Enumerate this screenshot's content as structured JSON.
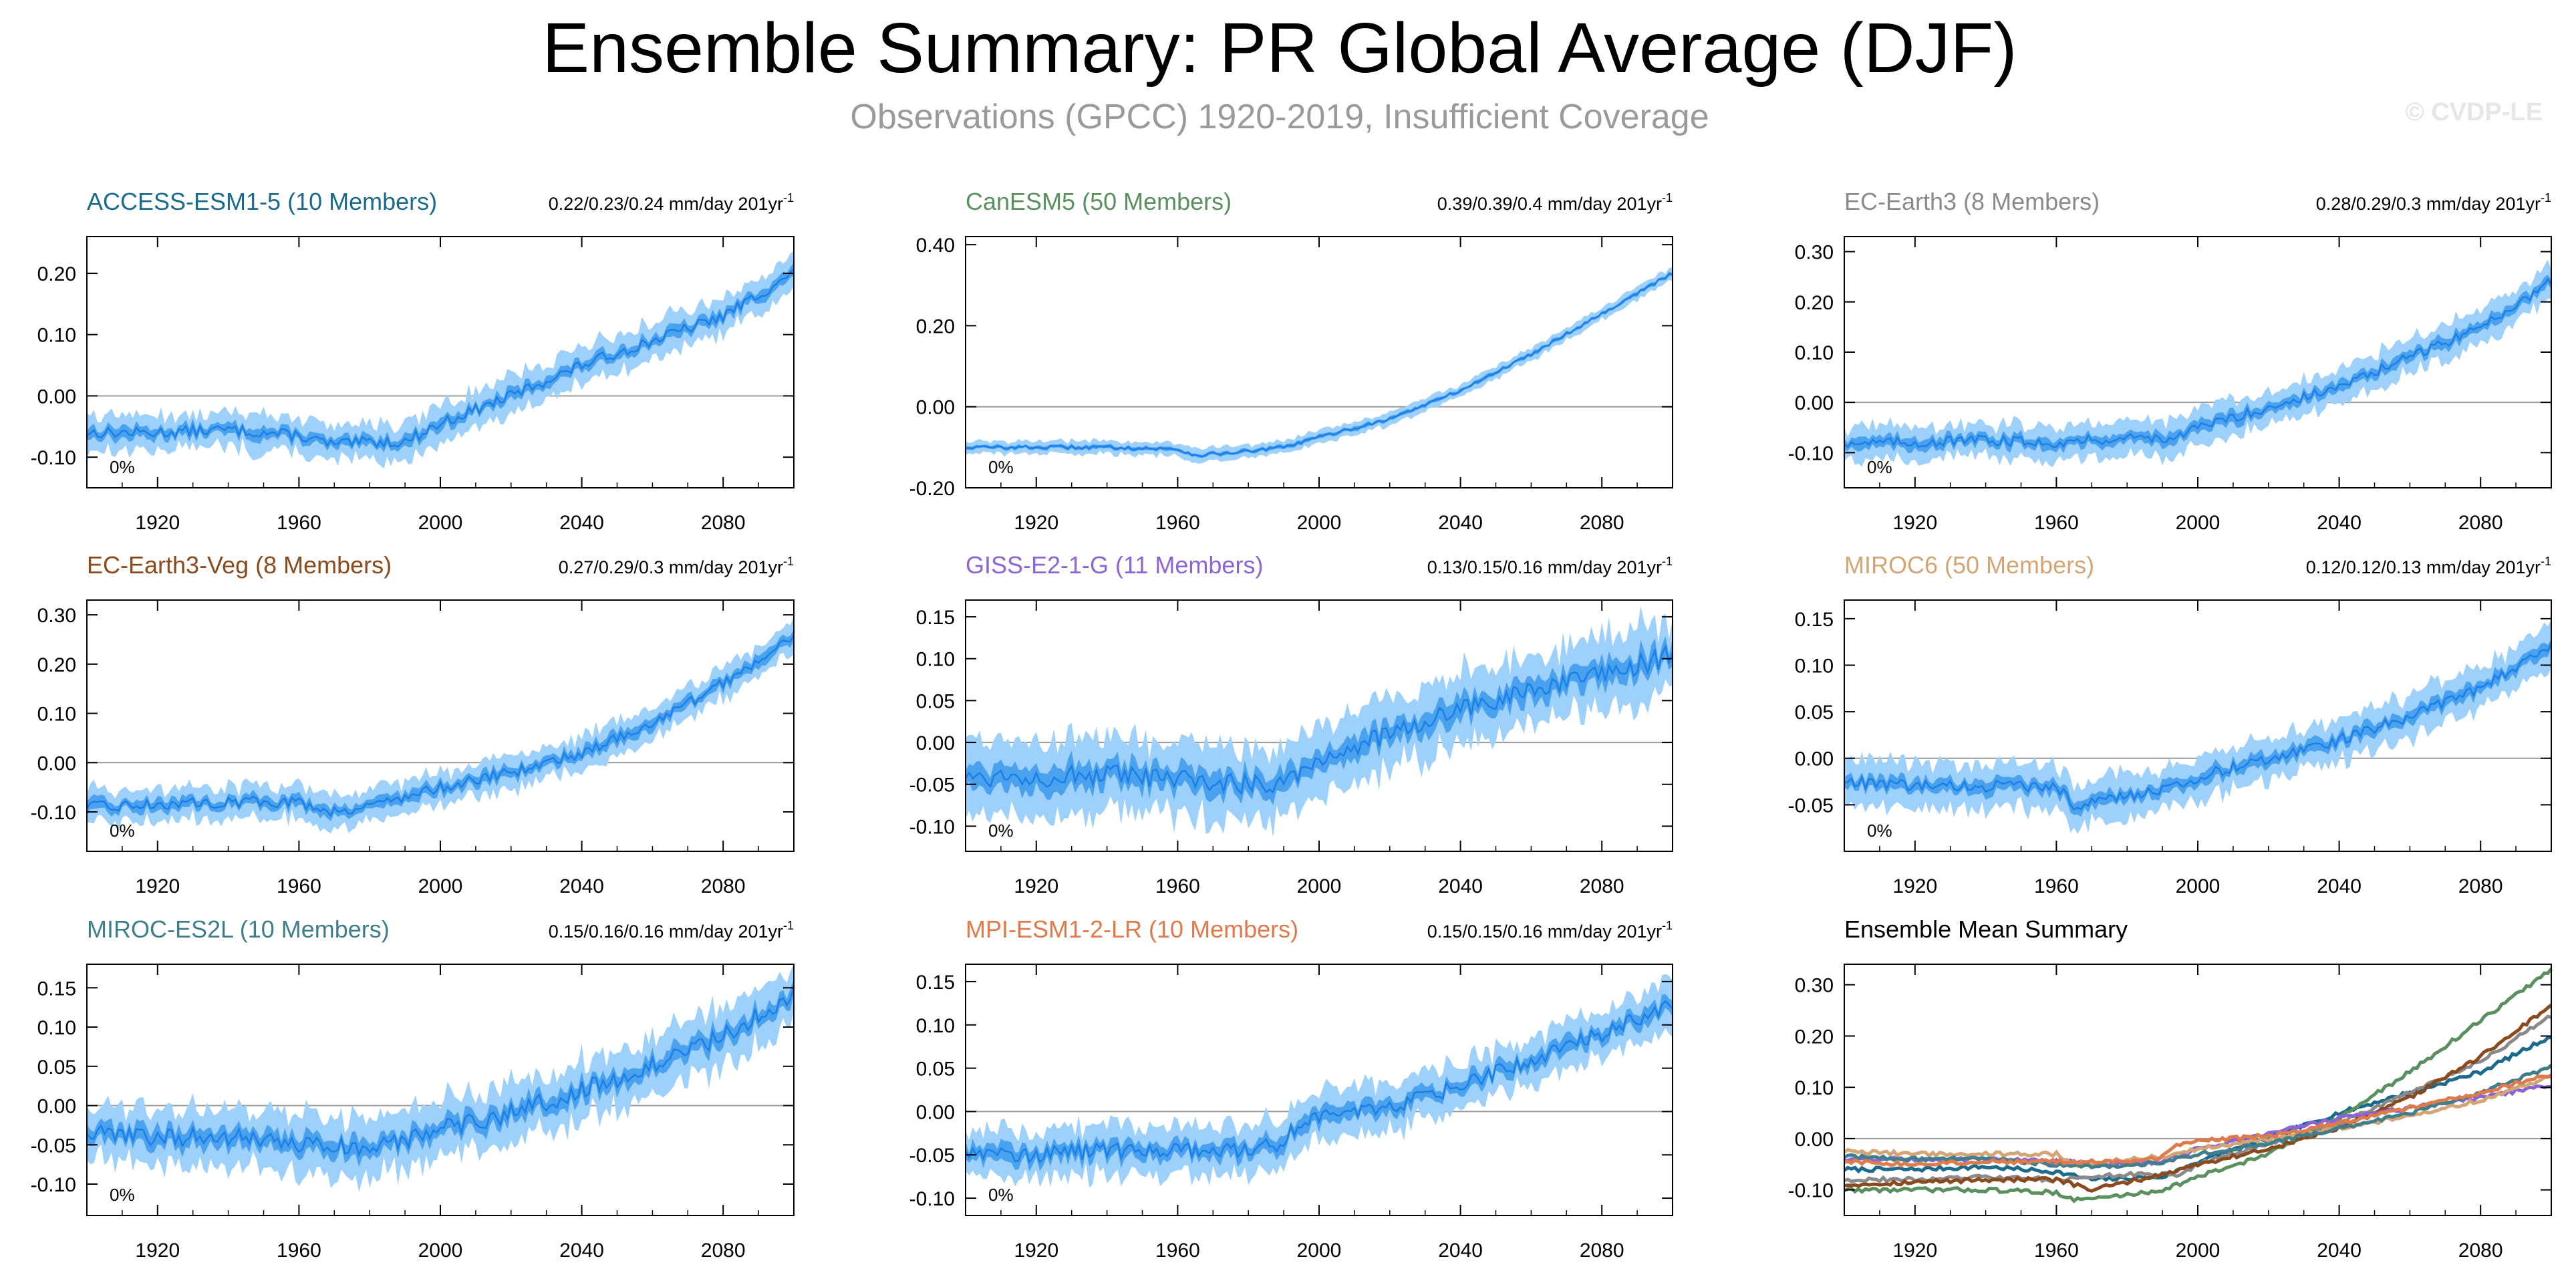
{
  "header": {
    "title": "Ensemble Summary: PR Global Average (DJF)",
    "subtitle": "Observations (GPCC) 1920-2019, Insufficient Coverage",
    "copyright": "© CVDP-LE"
  },
  "colors": {
    "range_outer": "#9dd0fb",
    "range_inner": "#4aa2ef",
    "mean_line": "#1a7fe6",
    "zero_line": "#9a9a9a",
    "axis": "#000000",
    "subtitle": "#9a9a9a"
  },
  "chart_data": [
    {
      "type": "area",
      "title": "ACCESS-ESM1-5 (10 Members)",
      "title_color": "#1a6a8c",
      "trend_label": "0.22/0.23/0.24 mm/day 201yr",
      "trend_sup": "-1",
      "coverage_label": "0%",
      "x": [
        1900,
        1920,
        1940,
        1960,
        1970,
        1980,
        1990,
        2000,
        2020,
        2040,
        2060,
        2080,
        2100
      ],
      "mean": [
        -0.06,
        -0.06,
        -0.055,
        -0.065,
        -0.08,
        -0.075,
        -0.075,
        -0.045,
        0.0,
        0.05,
        0.09,
        0.13,
        0.2
      ],
      "xlim": [
        1900,
        2100
      ],
      "ylim": [
        -0.15,
        0.26
      ],
      "yticks": [
        -0.1,
        0.0,
        0.1,
        0.2
      ],
      "ytick_labels": [
        "-0.10",
        "0.00",
        "0.10",
        "0.20"
      ],
      "xticks": [
        1920,
        1960,
        2000,
        2040,
        2080
      ],
      "xtick_labels": [
        "1920",
        "1960",
        "2000",
        "2040",
        "2080"
      ],
      "inner_spread": 0.008,
      "outer_spread": 0.02,
      "noise": 0.009
    },
    {
      "type": "area",
      "title": "CanESM5 (50 Members)",
      "title_color": "#5a8f5e",
      "trend_label": "0.39/0.39/0.4 mm/day 201yr",
      "trend_sup": "-1",
      "coverage_label": "0%",
      "x": [
        1900,
        1920,
        1940,
        1960,
        1965,
        1980,
        1990,
        2000,
        2020,
        2040,
        2060,
        2080,
        2100
      ],
      "mean": [
        -0.1,
        -0.1,
        -0.1,
        -0.105,
        -0.12,
        -0.11,
        -0.1,
        -0.075,
        -0.03,
        0.04,
        0.13,
        0.23,
        0.33
      ],
      "xlim": [
        1900,
        2100
      ],
      "ylim": [
        -0.2,
        0.42
      ],
      "yticks": [
        -0.2,
        0.0,
        0.2,
        0.4
      ],
      "ytick_labels": [
        "-0.20",
        "0.00",
        "0.20",
        "0.40"
      ],
      "xticks": [
        1920,
        1960,
        2000,
        2040,
        2080
      ],
      "xtick_labels": [
        "1920",
        "1960",
        "2000",
        "2040",
        "2080"
      ],
      "inner_spread": 0.004,
      "outer_spread": 0.011,
      "noise": 0.004
    },
    {
      "type": "area",
      "title": "EC-Earth3 (8 Members)",
      "title_color": "#8a8a8a",
      "trend_label": "0.28/0.29/0.3 mm/day 201yr",
      "trend_sup": "-1",
      "coverage_label": "0%",
      "x": [
        1900,
        1920,
        1940,
        1960,
        1980,
        1995,
        2000,
        2020,
        2040,
        2060,
        2080,
        2100
      ],
      "mean": [
        -0.08,
        -0.08,
        -0.075,
        -0.08,
        -0.07,
        -0.07,
        -0.05,
        -0.01,
        0.03,
        0.09,
        0.15,
        0.24
      ],
      "xlim": [
        1900,
        2100
      ],
      "ylim": [
        -0.17,
        0.33
      ],
      "yticks": [
        -0.1,
        0.0,
        0.1,
        0.2,
        0.3
      ],
      "ytick_labels": [
        "-0.10",
        "0.00",
        "0.10",
        "0.20",
        "0.30"
      ],
      "xticks": [
        1920,
        1960,
        2000,
        2040,
        2080
      ],
      "xtick_labels": [
        "1920",
        "1960",
        "2000",
        "2040",
        "2080"
      ],
      "inner_spread": 0.01,
      "outer_spread": 0.022,
      "noise": 0.01
    },
    {
      "type": "area",
      "title": "EC-Earth3-Veg (8 Members)",
      "title_color": "#8b4a1c",
      "trend_label": "0.27/0.29/0.3 mm/day 201yr",
      "trend_sup": "-1",
      "coverage_label": "0%",
      "x": [
        1900,
        1920,
        1940,
        1960,
        1970,
        1980,
        1990,
        2000,
        2020,
        2040,
        2060,
        2080,
        2100
      ],
      "mean": [
        -0.09,
        -0.085,
        -0.08,
        -0.08,
        -0.1,
        -0.085,
        -0.07,
        -0.05,
        -0.02,
        0.02,
        0.08,
        0.16,
        0.26
      ],
      "xlim": [
        1900,
        2100
      ],
      "ylim": [
        -0.18,
        0.33
      ],
      "yticks": [
        -0.1,
        0.0,
        0.1,
        0.2,
        0.3
      ],
      "ytick_labels": [
        "-0.10",
        "0.00",
        "0.10",
        "0.20",
        "0.30"
      ],
      "xticks": [
        1920,
        1960,
        2000,
        2040,
        2080
      ],
      "xtick_labels": [
        "1920",
        "1960",
        "2000",
        "2040",
        "2080"
      ],
      "inner_spread": 0.01,
      "outer_spread": 0.02,
      "noise": 0.011
    },
    {
      "type": "area",
      "title": "GISS-E2-1-G (11 Members)",
      "title_color": "#8b64d8",
      "trend_label": "0.13/0.15/0.16 mm/day 201yr",
      "trend_sup": "-1",
      "coverage_label": "0%",
      "x": [
        1900,
        1920,
        1940,
        1960,
        1980,
        1990,
        2000,
        2020,
        2040,
        2060,
        2080,
        2100
      ],
      "mean": [
        -0.04,
        -0.04,
        -0.04,
        -0.045,
        -0.05,
        -0.045,
        -0.02,
        0.01,
        0.04,
        0.06,
        0.08,
        0.105
      ],
      "xlim": [
        1900,
        2100
      ],
      "ylim": [
        -0.13,
        0.17
      ],
      "yticks": [
        -0.1,
        -0.05,
        0.0,
        0.05,
        0.1,
        0.15
      ],
      "ytick_labels": [
        "-0.10",
        "-0.05",
        "0.00",
        "0.05",
        "0.10",
        "0.15"
      ],
      "xticks": [
        1920,
        1960,
        2000,
        2040,
        2080
      ],
      "xtick_labels": [
        "1920",
        "1960",
        "2000",
        "2040",
        "2080"
      ],
      "inner_spread": 0.012,
      "outer_spread": 0.028,
      "noise": 0.013
    },
    {
      "type": "area",
      "title": "MIROC6 (50 Members)",
      "title_color": "#d4a574",
      "trend_label": "0.12/0.12/0.13 mm/day 201yr",
      "trend_sup": "-1",
      "coverage_label": "0%",
      "x": [
        1900,
        1920,
        1940,
        1960,
        1965,
        1980,
        1990,
        2000,
        2020,
        2040,
        2060,
        2080,
        2100
      ],
      "mean": [
        -0.025,
        -0.03,
        -0.03,
        -0.03,
        -0.05,
        -0.04,
        -0.035,
        -0.02,
        0.0,
        0.02,
        0.045,
        0.075,
        0.12
      ],
      "xlim": [
        1900,
        2100
      ],
      "ylim": [
        -0.1,
        0.17
      ],
      "yticks": [
        -0.05,
        0.0,
        0.05,
        0.1,
        0.15
      ],
      "ytick_labels": [
        "-0.05",
        "0.00",
        "0.05",
        "0.10",
        "0.15"
      ],
      "xticks": [
        1920,
        1960,
        2000,
        2040,
        2080
      ],
      "xtick_labels": [
        "1920",
        "1960",
        "2000",
        "2040",
        "2080"
      ],
      "inner_spread": 0.006,
      "outer_spread": 0.016,
      "noise": 0.006
    },
    {
      "type": "area",
      "title": "MIROC-ES2L (10 Members)",
      "title_color": "#3f7f8c",
      "trend_label": "0.15/0.16/0.16 mm/day 201yr",
      "trend_sup": "-1",
      "coverage_label": "0%",
      "x": [
        1900,
        1920,
        1940,
        1960,
        1980,
        1990,
        2000,
        2020,
        2040,
        2060,
        2080,
        2100
      ],
      "mean": [
        -0.035,
        -0.04,
        -0.04,
        -0.05,
        -0.055,
        -0.045,
        -0.03,
        -0.01,
        0.02,
        0.05,
        0.09,
        0.14
      ],
      "xlim": [
        1900,
        2100
      ],
      "ylim": [
        -0.14,
        0.18
      ],
      "yticks": [
        -0.1,
        -0.05,
        0.0,
        0.05,
        0.1,
        0.15
      ],
      "ytick_labels": [
        "-0.10",
        "-0.05",
        "0.00",
        "0.05",
        "0.10",
        "0.15"
      ],
      "xticks": [
        1920,
        1960,
        2000,
        2040,
        2080
      ],
      "xtick_labels": [
        "1920",
        "1960",
        "2000",
        "2040",
        "2080"
      ],
      "inner_spread": 0.01,
      "outer_spread": 0.024,
      "noise": 0.012
    },
    {
      "type": "area",
      "title": "MPI-ESM1-2-LR (10 Members)",
      "title_color": "#e07a4a",
      "trend_label": "0.15/0.15/0.16 mm/day 201yr",
      "trend_sup": "-1",
      "coverage_label": "0%",
      "x": [
        1900,
        1920,
        1940,
        1960,
        1980,
        1990,
        1995,
        2000,
        2020,
        2040,
        2060,
        2080,
        2100
      ],
      "mean": [
        -0.045,
        -0.05,
        -0.045,
        -0.045,
        -0.045,
        -0.035,
        -0.01,
        -0.005,
        0.005,
        0.03,
        0.06,
        0.09,
        0.125
      ],
      "xlim": [
        1900,
        2100
      ],
      "ylim": [
        -0.12,
        0.17
      ],
      "yticks": [
        -0.1,
        -0.05,
        0.0,
        0.05,
        0.1,
        0.15
      ],
      "ytick_labels": [
        "-0.10",
        "-0.05",
        "0.00",
        "0.05",
        "0.10",
        "0.15"
      ],
      "xticks": [
        1920,
        1960,
        2000,
        2040,
        2080
      ],
      "xtick_labels": [
        "1920",
        "1960",
        "2000",
        "2040",
        "2080"
      ],
      "inner_spread": 0.008,
      "outer_spread": 0.018,
      "noise": 0.009
    },
    {
      "type": "line",
      "title": "Ensemble Mean Summary",
      "title_color": "#000000",
      "trend_label": "",
      "trend_sup": "",
      "coverage_label": "",
      "xlim": [
        1900,
        2100
      ],
      "ylim": [
        -0.15,
        0.34
      ],
      "yticks": [
        -0.1,
        0.0,
        0.1,
        0.2,
        0.3
      ],
      "ytick_labels": [
        "-0.10",
        "0.00",
        "0.10",
        "0.20",
        "0.30"
      ],
      "xticks": [
        1920,
        1960,
        2000,
        2040,
        2080
      ],
      "xtick_labels": [
        "1920",
        "1960",
        "2000",
        "2040",
        "2080"
      ],
      "noise": 0.004,
      "series": [
        {
          "color": "#1a6a8c",
          "x": [
            1900,
            1920,
            1940,
            1960,
            1970,
            1990,
            2000,
            2020,
            2040,
            2060,
            2080,
            2100
          ],
          "values": [
            -0.06,
            -0.06,
            -0.055,
            -0.065,
            -0.08,
            -0.075,
            -0.045,
            0.0,
            0.05,
            0.09,
            0.13,
            0.2
          ]
        },
        {
          "color": "#5a8f5e",
          "x": [
            1900,
            1920,
            1940,
            1960,
            1965,
            1980,
            1990,
            2000,
            2020,
            2040,
            2060,
            2080,
            2100
          ],
          "values": [
            -0.1,
            -0.1,
            -0.1,
            -0.105,
            -0.12,
            -0.11,
            -0.1,
            -0.075,
            -0.03,
            0.04,
            0.13,
            0.23,
            0.33
          ]
        },
        {
          "color": "#8a8a8a",
          "x": [
            1900,
            1920,
            1940,
            1960,
            1980,
            1995,
            2000,
            2020,
            2040,
            2060,
            2080,
            2100
          ],
          "values": [
            -0.08,
            -0.08,
            -0.075,
            -0.08,
            -0.07,
            -0.07,
            -0.05,
            -0.01,
            0.03,
            0.09,
            0.15,
            0.24
          ]
        },
        {
          "color": "#8b4a1c",
          "x": [
            1900,
            1920,
            1940,
            1960,
            1970,
            1980,
            1990,
            2000,
            2020,
            2040,
            2060,
            2080,
            2100
          ],
          "values": [
            -0.09,
            -0.085,
            -0.08,
            -0.08,
            -0.1,
            -0.085,
            -0.07,
            -0.05,
            -0.02,
            0.02,
            0.08,
            0.16,
            0.26
          ]
        },
        {
          "color": "#8b64d8",
          "x": [
            1900,
            1920,
            1940,
            1960,
            1980,
            1990,
            2000,
            2020,
            2040,
            2060,
            2080,
            2100
          ],
          "values": [
            -0.04,
            -0.04,
            -0.04,
            -0.045,
            -0.05,
            -0.045,
            -0.02,
            0.01,
            0.04,
            0.06,
            0.08,
            0.105
          ]
        },
        {
          "color": "#d4a574",
          "x": [
            1900,
            1920,
            1940,
            1960,
            1965,
            1980,
            1990,
            2000,
            2020,
            2040,
            2060,
            2080,
            2100
          ],
          "values": [
            -0.025,
            -0.03,
            -0.03,
            -0.03,
            -0.05,
            -0.04,
            -0.035,
            -0.02,
            0.0,
            0.02,
            0.045,
            0.075,
            0.12
          ]
        },
        {
          "color": "#3f7f8c",
          "x": [
            1900,
            1920,
            1940,
            1960,
            1980,
            1990,
            2000,
            2020,
            2040,
            2060,
            2080,
            2100
          ],
          "values": [
            -0.035,
            -0.04,
            -0.04,
            -0.05,
            -0.055,
            -0.045,
            -0.03,
            -0.01,
            0.02,
            0.05,
            0.09,
            0.14
          ]
        },
        {
          "color": "#e07a4a",
          "x": [
            1900,
            1920,
            1940,
            1960,
            1980,
            1990,
            1995,
            2000,
            2020,
            2040,
            2060,
            2080,
            2100
          ],
          "values": [
            -0.045,
            -0.05,
            -0.045,
            -0.045,
            -0.045,
            -0.035,
            -0.01,
            -0.005,
            0.005,
            0.03,
            0.06,
            0.09,
            0.125
          ]
        }
      ]
    }
  ]
}
